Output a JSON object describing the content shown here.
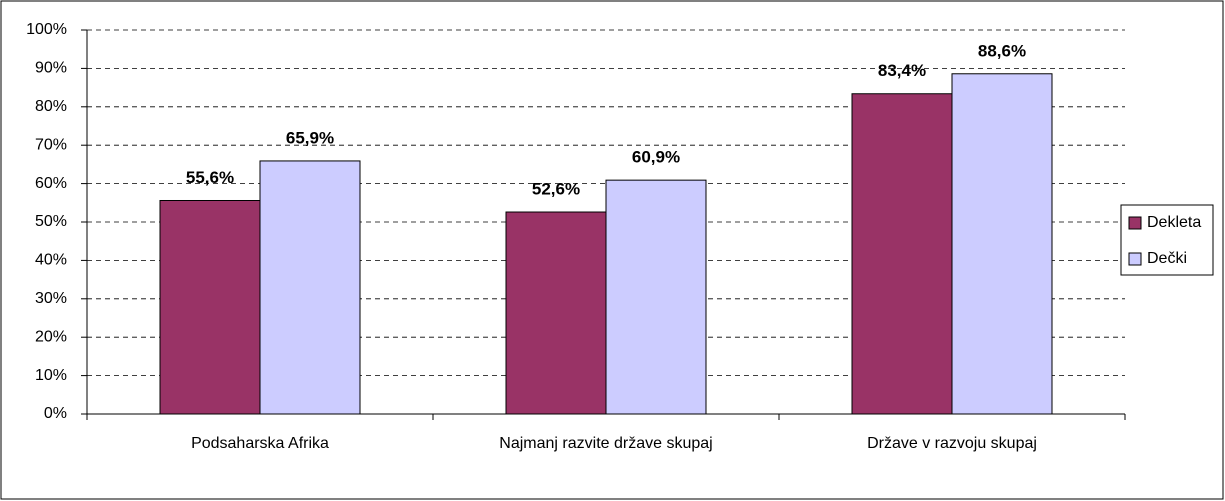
{
  "chart_data": {
    "type": "bar",
    "categories": [
      "Podsaharska Afrika",
      "Najmanj razvite države skupaj",
      "Države v razvoju skupaj"
    ],
    "series": [
      {
        "name": "Dekleta",
        "color": "#993366",
        "values": [
          55.6,
          52.6,
          83.4
        ],
        "value_labels": [
          "55,6%",
          "52,6%",
          "83,4%"
        ]
      },
      {
        "name": "Dečki",
        "color": "#CCCCFF",
        "values": [
          65.9,
          60.9,
          88.6
        ],
        "value_labels": [
          "65,9%",
          "60,9%",
          "88,6%"
        ]
      }
    ],
    "ylim": [
      0,
      100
    ],
    "yticks": [
      {
        "value": 0,
        "label": "0%"
      },
      {
        "value": 10,
        "label": "10%"
      },
      {
        "value": 20,
        "label": "20%"
      },
      {
        "value": 30,
        "label": "30%"
      },
      {
        "value": 40,
        "label": "40%"
      },
      {
        "value": 50,
        "label": "50%"
      },
      {
        "value": 60,
        "label": "60%"
      },
      {
        "value": 70,
        "label": "70%"
      },
      {
        "value": 80,
        "label": "80%"
      },
      {
        "value": 90,
        "label": "90%"
      },
      {
        "value": 100,
        "label": "100%"
      }
    ],
    "grid": true,
    "legend": "right"
  }
}
